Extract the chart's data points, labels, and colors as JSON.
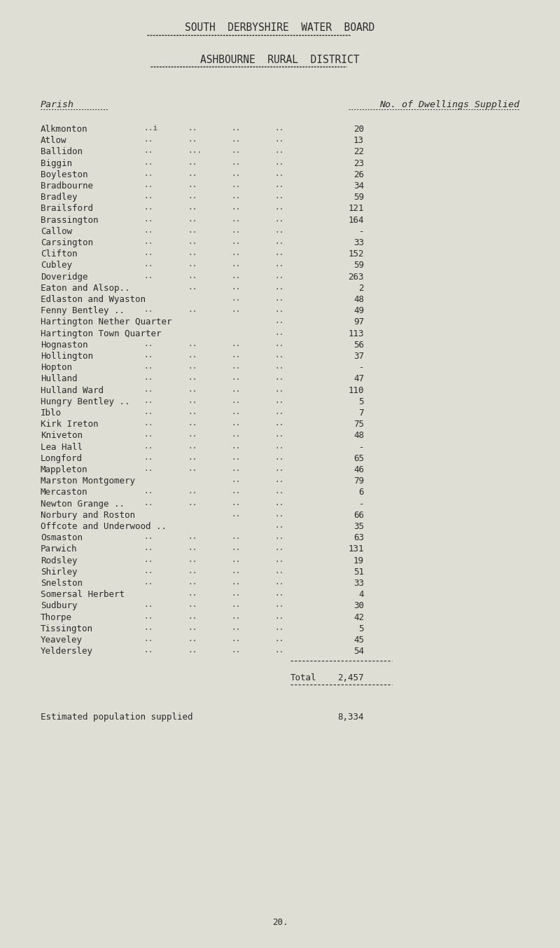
{
  "title1": "SOUTH  DERBYSHIRE  WATER  BOARD",
  "title2": "ASHBOURNE  RURAL  DISTRICT",
  "col_header_left": "Parish",
  "col_header_right": "No. of Dwellings Supplied",
  "parishes": [
    "Alkmonton",
    "Atlow",
    "Ballidon",
    "Biggin",
    "Boyleston",
    "Bradbourne",
    "Bradley",
    "Brailsford",
    "Brassington",
    "Callow",
    "Carsington",
    "Clifton",
    "Cubley",
    "Doveridge",
    "Eaton and Alsop..",
    "Edlaston and Wyaston",
    "Fenny Bentley ..",
    "Hartington Nether Quarter",
    "Hartington Town Quarter",
    "Hognaston",
    "Hollington",
    "Hopton",
    "Hulland",
    "Hulland Ward",
    "Hungry Bentley ..",
    "Iblo",
    "Kirk Ireton",
    "Kniveton",
    "Lea Hall",
    "Longford",
    "Mappleton",
    "Marston Montgomery",
    "Mercaston",
    "Newton Grange ..",
    "Norbury and Roston",
    "Offcote and Underwood ..",
    "Osmaston",
    "Parwich",
    "Rodsley",
    "Shirley",
    "Snelston",
    "Somersal Herbert",
    "Sudbury",
    "Thorpe",
    "Tissington",
    "Yeaveley",
    "Yeldersley"
  ],
  "dots_col1": [
    "..i",
    "..",
    "..",
    "..",
    "..",
    "..",
    "..",
    "..",
    "..",
    "..",
    "..",
    "..",
    "..",
    "..",
    "",
    "..",
    "..",
    "",
    "",
    "..",
    "..",
    "..",
    "..",
    "..",
    "..",
    "..",
    "..",
    "..",
    "..",
    "..",
    "..",
    "..",
    "..",
    "..",
    "..",
    "..",
    "..",
    "..",
    "..",
    "..",
    "..",
    "",
    "..",
    "..",
    "..",
    "..",
    ".."
  ],
  "dots_col2": [
    "..",
    "..",
    "...",
    "..",
    "..",
    "..",
    "..",
    "..",
    "..",
    "..",
    "..",
    "..",
    "..",
    "..",
    "..",
    "..",
    "..",
    "..",
    "..",
    "..",
    "..",
    "..",
    "..",
    "..",
    "..",
    "..",
    "..",
    "..",
    "..",
    "..",
    "..",
    "..",
    "..",
    "..",
    "..",
    "..",
    "..",
    "..",
    "..",
    "..",
    "..",
    "..",
    "..",
    "..",
    "..",
    "..",
    ".."
  ],
  "dots_col3": [
    "..",
    "..",
    "..",
    "..",
    "..",
    "..",
    "..",
    "..",
    "..",
    "..",
    "..",
    "..",
    "..",
    "..",
    "..",
    "..",
    "..",
    "..",
    "..",
    "..",
    "..",
    "..",
    "..",
    "..",
    "..",
    "..",
    "..",
    "..",
    "..",
    "..",
    "..",
    "..",
    "..",
    "..",
    "..",
    "..",
    "..",
    "..",
    "..",
    "..",
    "..",
    "..",
    "..",
    "..",
    "..",
    "..",
    ".."
  ],
  "dots_col4": [
    "..",
    "..",
    "..",
    "..",
    "..",
    "..",
    "..",
    "..",
    "..",
    "..",
    "..",
    "..",
    "..",
    "..",
    "..",
    "..",
    "..",
    "..",
    "..",
    "..",
    "..",
    "..",
    "..",
    "..",
    "..",
    "..",
    "..",
    "..",
    "..",
    "..",
    "..",
    "..",
    "..",
    "..",
    "..",
    "..",
    "..",
    "..",
    "..",
    "..",
    "..",
    "..",
    "..",
    "..",
    "..",
    "..",
    ".."
  ],
  "values": [
    "20",
    "13",
    "22",
    "23",
    "26",
    "34",
    "59",
    "121",
    "164",
    "-",
    "33",
    "152",
    "59",
    "263",
    "2",
    "48",
    "49",
    "97",
    "113",
    "56",
    "37",
    "-",
    "47",
    "110",
    "5",
    "7",
    "75",
    "48",
    "-",
    "65",
    "46",
    "79",
    "6",
    "-",
    "66",
    "35",
    "63",
    "131",
    "19",
    "51",
    "33",
    "4",
    "30",
    "42",
    "5",
    "45",
    "54"
  ],
  "total_label": "Total",
  "total_value": "2,457",
  "footer_label": "Estimated population supplied",
  "footer_value": "8,334",
  "page_number": "20.",
  "bg_color": "#deded5",
  "text_color": "#2a2a2a",
  "font_size": 9.0,
  "title_font_size": 10.5,
  "header_font_size": 9.5
}
